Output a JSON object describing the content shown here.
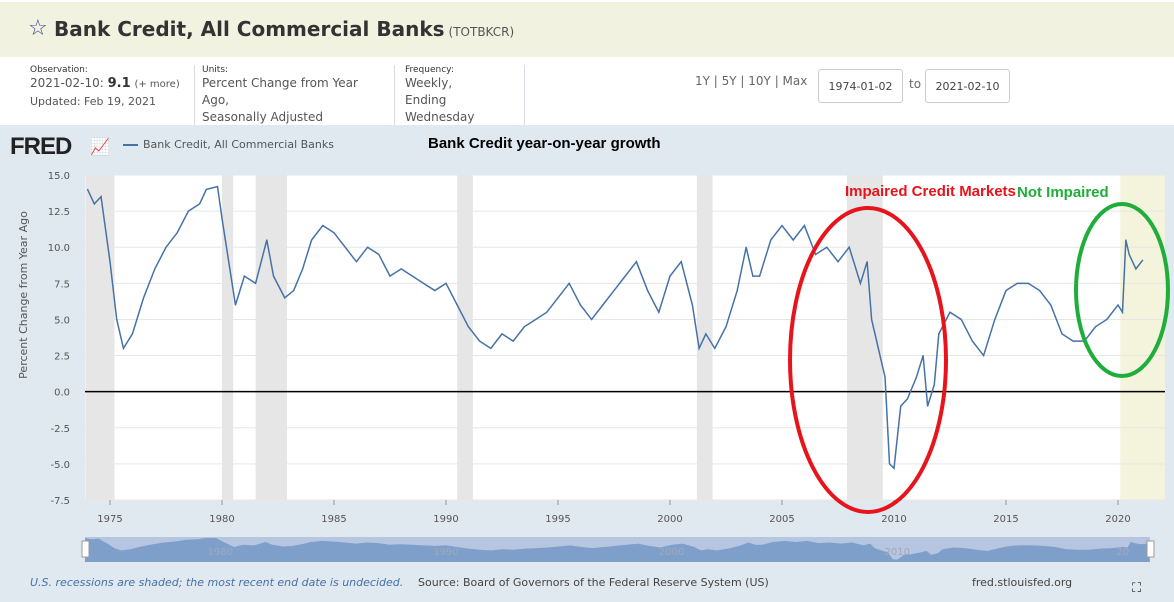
{
  "header": {
    "title": "Bank Credit, All Commercial Banks",
    "code": "(TOTBKCR)",
    "star_icon": "star-icon"
  },
  "info": {
    "observation_label": "Observation:",
    "observation_date": "2021-02-10:",
    "observation_value": "9.1",
    "more": "(+ more)",
    "updated": "Updated: Feb 19, 2021",
    "units_label": "Units:",
    "units_1": "Percent Change from Year Ago,",
    "units_2": "Seasonally Adjusted",
    "frequency_label": "Frequency:",
    "frequency_1": "Weekly,",
    "frequency_2": "Ending Wednesday",
    "range_links": "1Y | 5Y | 10Y | Max",
    "start_date": "1974-01-02",
    "to": "to",
    "end_date": "2021-02-10"
  },
  "legend": {
    "logo": "FRED",
    "series": "Bank Credit, All Commercial Banks"
  },
  "footer": {
    "note": "U.S. recessions are shaded; the most recent end date is undecided.",
    "source": "Source: Board of Governors of the Federal Reserve System (US)",
    "site": "fred.stlouisfed.org"
  },
  "annotations": {
    "red": "Impaired Credit Markets",
    "green": "Not Impaired",
    "red_color": "#e8141b",
    "green_color": "#1fae3a"
  },
  "chart_data": {
    "type": "line",
    "title": "Bank Credit  year-on-year growth",
    "ylabel": "Percent Change from Year Ago",
    "xlabel": "",
    "ylim": [
      -7.5,
      15
    ],
    "xlim": [
      1973.9,
      2021.2
    ],
    "yticks": [
      "15.0",
      "12.5",
      "10.0",
      "7.5",
      "5.0",
      "2.5",
      "0.0",
      "-2.5",
      "-5.0",
      "-7.5"
    ],
    "xticks": [
      "1975",
      "1980",
      "1985",
      "1990",
      "1995",
      "2000",
      "2005",
      "2010",
      "2015",
      "2020"
    ],
    "navigator_labels": [
      "1980",
      "1990",
      "2000",
      "2010",
      "20"
    ],
    "recessions": [
      [
        1973.9,
        1975.2
      ],
      [
        1980.0,
        1980.5
      ],
      [
        1981.5,
        1982.9
      ],
      [
        1990.5,
        1991.2
      ],
      [
        2001.2,
        2001.9
      ],
      [
        2007.9,
        2009.5
      ]
    ],
    "recession_open": [
      2020.1,
      2021.2
    ],
    "series": [
      {
        "name": "Bank Credit, All Commercial Banks",
        "color": "#4572a7",
        "x": [
          1974.0,
          1974.3,
          1974.6,
          1975.0,
          1975.3,
          1975.6,
          1976.0,
          1976.5,
          1977.0,
          1977.5,
          1978.0,
          1978.5,
          1979.0,
          1979.3,
          1979.8,
          1980.0,
          1980.3,
          1980.6,
          1981.0,
          1981.5,
          1982.0,
          1982.3,
          1982.8,
          1983.2,
          1983.6,
          1984.0,
          1984.5,
          1985.0,
          1985.5,
          1986.0,
          1986.5,
          1987.0,
          1987.5,
          1988.0,
          1988.5,
          1989.0,
          1989.5,
          1990.0,
          1990.5,
          1991.0,
          1991.5,
          1992.0,
          1992.5,
          1993.0,
          1993.5,
          1994.0,
          1994.5,
          1995.0,
          1995.5,
          1996.0,
          1996.5,
          1997.0,
          1997.5,
          1998.0,
          1998.5,
          1999.0,
          1999.5,
          2000.0,
          2000.5,
          2001.0,
          2001.3,
          2001.6,
          2002.0,
          2002.5,
          2003.0,
          2003.4,
          2003.7,
          2004.0,
          2004.5,
          2005.0,
          2005.5,
          2006.0,
          2006.5,
          2007.0,
          2007.5,
          2008.0,
          2008.5,
          2008.8,
          2009.0,
          2009.3,
          2009.6,
          2009.8,
          2010.0,
          2010.3,
          2010.6,
          2011.0,
          2011.3,
          2011.5,
          2011.8,
          2012.0,
          2012.5,
          2013.0,
          2013.5,
          2014.0,
          2014.5,
          2015.0,
          2015.5,
          2016.0,
          2016.5,
          2017.0,
          2017.5,
          2018.0,
          2018.5,
          2019.0,
          2019.5,
          2020.0,
          2020.2,
          2020.35,
          2020.5,
          2020.8,
          2021.1
        ],
        "values": [
          14,
          13,
          13.5,
          9,
          5,
          3,
          4,
          6.5,
          8.5,
          10,
          11,
          12.5,
          13,
          14,
          14.2,
          12,
          9,
          6,
          8,
          7.5,
          10.5,
          8,
          6.5,
          7,
          8.5,
          10.5,
          11.5,
          11,
          10,
          9,
          10,
          9.5,
          8,
          8.5,
          8,
          7.5,
          7,
          7.5,
          6,
          4.5,
          3.5,
          3,
          4,
          3.5,
          4.5,
          5,
          5.5,
          6.5,
          7.5,
          6,
          5,
          6,
          7,
          8,
          9,
          7,
          5.5,
          8,
          9,
          6,
          3,
          4,
          3,
          4.5,
          7,
          10,
          8,
          8,
          10.5,
          11.5,
          10.5,
          11.5,
          9.5,
          10,
          9,
          10,
          7.5,
          9,
          5,
          3,
          1,
          -5,
          -5.3,
          -1,
          -0.5,
          1,
          2.5,
          -1,
          0.5,
          4,
          5.5,
          5,
          3.5,
          2.5,
          5,
          7,
          7.5,
          7.5,
          7,
          6,
          4,
          3.5,
          3.5,
          4.5,
          5,
          6,
          5.5,
          10.5,
          9.5,
          8.5,
          9.1
        ]
      }
    ]
  }
}
